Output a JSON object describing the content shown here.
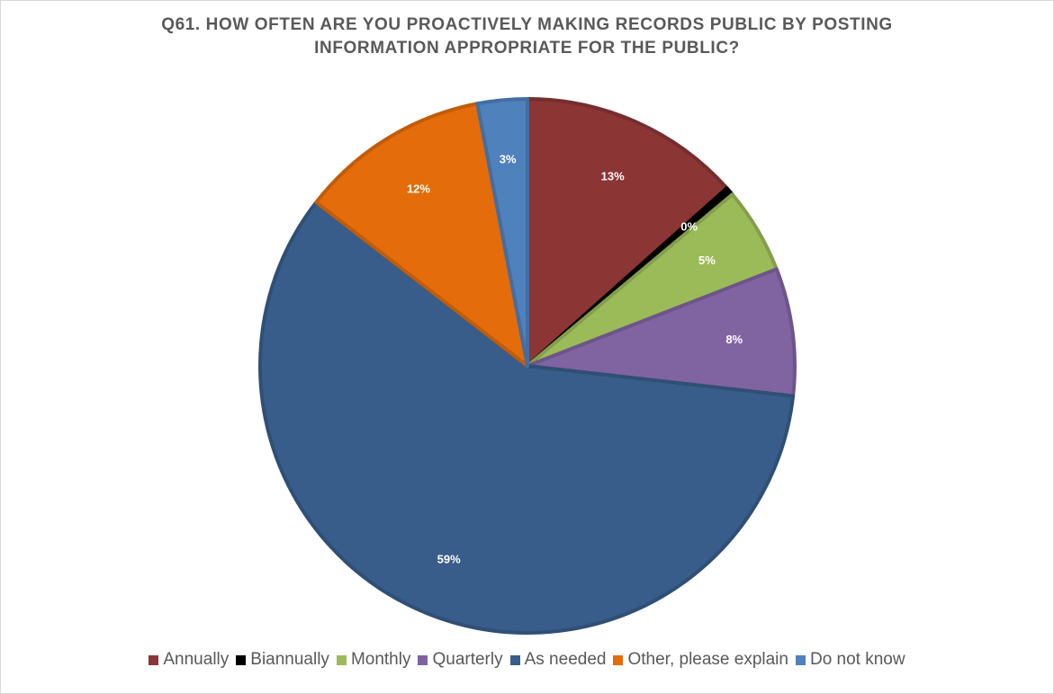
{
  "chart_data": {
    "type": "pie",
    "title": "Q61. HOW OFTEN ARE YOU PROACTIVELY MAKING RECORDS PUBLIC BY POSTING INFORMATION APPROPRIATE FOR THE PUBLIC?",
    "title_lines": [
      "Q61. HOW OFTEN ARE YOU PROACTIVELY MAKING RECORDS PUBLIC BY POSTING",
      "INFORMATION APPROPRIATE FOR THE PUBLIC?"
    ],
    "legend_position": "bottom",
    "slices": [
      {
        "label": "Annually",
        "value": 13.4,
        "display": "13%",
        "color": "#8B3535"
      },
      {
        "label": "Biannually",
        "value": 0.5,
        "display": "0%",
        "color": "#000000"
      },
      {
        "label": "Monthly",
        "value": 5.2,
        "display": "5%",
        "color": "#9BBB59"
      },
      {
        "label": "Quarterly",
        "value": 7.7,
        "display": "8%",
        "color": "#8064A2"
      },
      {
        "label": "As needed",
        "value": 58.7,
        "display": "59%",
        "color": "#385D8A"
      },
      {
        "label": "Other, please explain",
        "value": 11.5,
        "display": "12%",
        "color": "#E46C0A"
      },
      {
        "label": "Do not know",
        "value": 3.0,
        "display": "3%",
        "color": "#4F81BD"
      }
    ]
  }
}
